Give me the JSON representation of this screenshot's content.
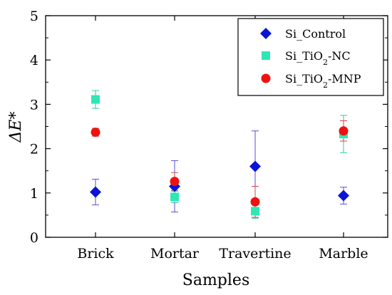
{
  "chart_data": {
    "type": "scatter",
    "categories": [
      "Brick",
      "Mortar",
      "Travertine",
      "Marble"
    ],
    "xlabel": "Samples",
    "ylabel": "ΔE*",
    "ylim": [
      0,
      5
    ],
    "yticks": [
      0,
      1,
      2,
      3,
      4,
      5
    ],
    "grid": false,
    "legend_position": "top-right",
    "series": [
      {
        "name": "Si_Control",
        "label_parts": [
          {
            "text": "Si_Control",
            "sub": false
          }
        ],
        "marker": "diamond",
        "color": "#0a14d6",
        "error_color": "#5a4fcf",
        "values": [
          1.02,
          1.15,
          1.6,
          0.94
        ],
        "errors": [
          0.29,
          0.58,
          0.8,
          0.19
        ]
      },
      {
        "name": "Si_TiO2-NC",
        "label_parts": [
          {
            "text": "Si_TiO",
            "sub": false
          },
          {
            "text": "2",
            "sub": true
          },
          {
            "text": "-NC",
            "sub": false
          }
        ],
        "marker": "square",
        "color": "#2ee8b4",
        "error_color": "#2ec9a8",
        "values": [
          3.11,
          0.91,
          0.59,
          2.33
        ],
        "errors": [
          0.2,
          0.13,
          0.16,
          0.42
        ]
      },
      {
        "name": "Si_TiO2-MNP",
        "label_parts": [
          {
            "text": "Si_TiO",
            "sub": false
          },
          {
            "text": "2",
            "sub": true
          },
          {
            "text": "-MNP",
            "sub": false
          }
        ],
        "marker": "circle",
        "color": "#ee1111",
        "error_color": "#d44444",
        "values": [
          2.37,
          1.26,
          0.8,
          2.4
        ],
        "errors": [
          0.09,
          0.2,
          0.35,
          0.23
        ]
      }
    ]
  }
}
